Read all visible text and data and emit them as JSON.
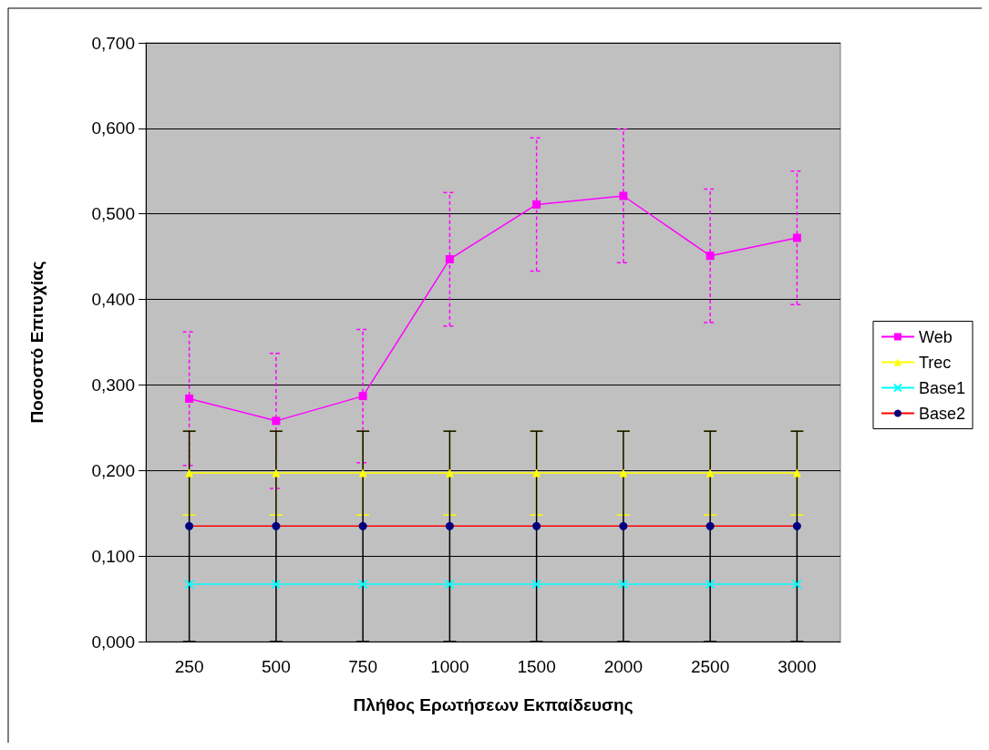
{
  "chart_data": {
    "type": "line",
    "xlabel": "Πλήθος Ερωτήσεων Εκπαίδευσης",
    "ylabel": "Ποσοστό Επιτυχίας",
    "categories": [
      "250",
      "500",
      "750",
      "1000",
      "1500",
      "2000",
      "2500",
      "3000"
    ],
    "ylim": [
      0,
      0.7
    ],
    "yticks": [
      {
        "value": 0,
        "label": "0,000"
      },
      {
        "value": 0.1,
        "label": "0,100"
      },
      {
        "value": 0.2,
        "label": "0,200"
      },
      {
        "value": 0.3,
        "label": "0,300"
      },
      {
        "value": 0.4,
        "label": "0,400"
      },
      {
        "value": 0.5,
        "label": "0,500"
      },
      {
        "value": 0.6,
        "label": "0,600"
      },
      {
        "value": 0.7,
        "label": "0,700"
      }
    ],
    "grid": "y",
    "legend": "right",
    "series": [
      {
        "name": "Web",
        "color": "#ff00ff",
        "marker": "square",
        "values": [
          0.284,
          0.258,
          0.287,
          0.447,
          0.511,
          0.521,
          0.451,
          0.472
        ],
        "errors": [
          0.078,
          0.079,
          0.078,
          0.078,
          0.078,
          0.078,
          0.078,
          0.078
        ]
      },
      {
        "name": "Trec",
        "color": "#ffff00",
        "marker": "triangle",
        "values": [
          0.197,
          0.197,
          0.197,
          0.197,
          0.197,
          0.197,
          0.197,
          0.197
        ],
        "errors": [
          0.049,
          0.049,
          0.049,
          0.049,
          0.049,
          0.049,
          0.049,
          0.049
        ]
      },
      {
        "name": "Base1",
        "color": "#00ffff",
        "marker": "cross",
        "values": [
          0.067,
          0.067,
          0.067,
          0.067,
          0.067,
          0.067,
          0.067,
          0.067
        ]
      },
      {
        "name": "Base2",
        "color": "#ff0000",
        "marker": "circle",
        "values": [
          0.135,
          0.135,
          0.135,
          0.135,
          0.135,
          0.135,
          0.135,
          0.135
        ],
        "errors": [
          [
            0,
            0.246
          ],
          [
            0,
            0.246
          ],
          [
            0,
            0.246
          ],
          [
            0,
            0.246
          ],
          [
            0,
            0.246
          ],
          [
            0,
            0.246
          ],
          [
            0,
            0.246
          ],
          [
            0,
            0.246
          ]
        ]
      }
    ]
  }
}
